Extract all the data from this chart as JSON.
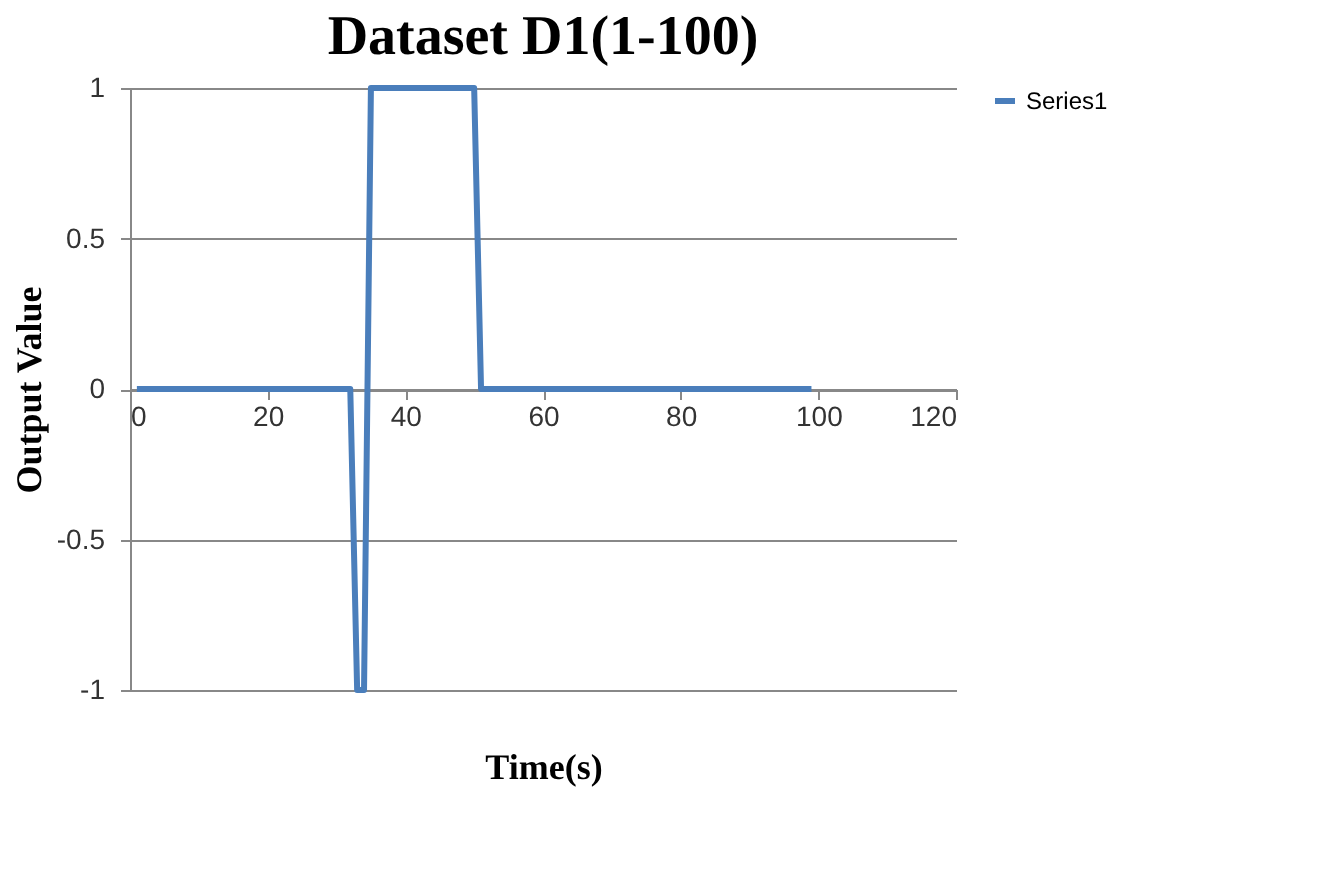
{
  "chart_data": {
    "type": "line",
    "title": "Dataset D1(1-100)",
    "xlabel": "Time(s)",
    "ylabel": "Output Value",
    "series": [
      {
        "name": "Series1",
        "color": "#4a7ebb",
        "x": [
          1,
          32,
          33,
          34,
          35,
          50,
          51,
          99
        ],
        "values": [
          0,
          0,
          -1,
          -1,
          1,
          1,
          0,
          0
        ]
      }
    ],
    "xlim": [
      0,
      120
    ],
    "xticks": [
      0,
      20,
      40,
      60,
      80,
      100,
      120
    ],
    "ylim": [
      -1,
      1
    ],
    "yticks": [
      -1,
      -0.5,
      0,
      0.5,
      1
    ],
    "grid": "y",
    "legend": "right",
    "marker": "none",
    "line_style": "solid"
  }
}
